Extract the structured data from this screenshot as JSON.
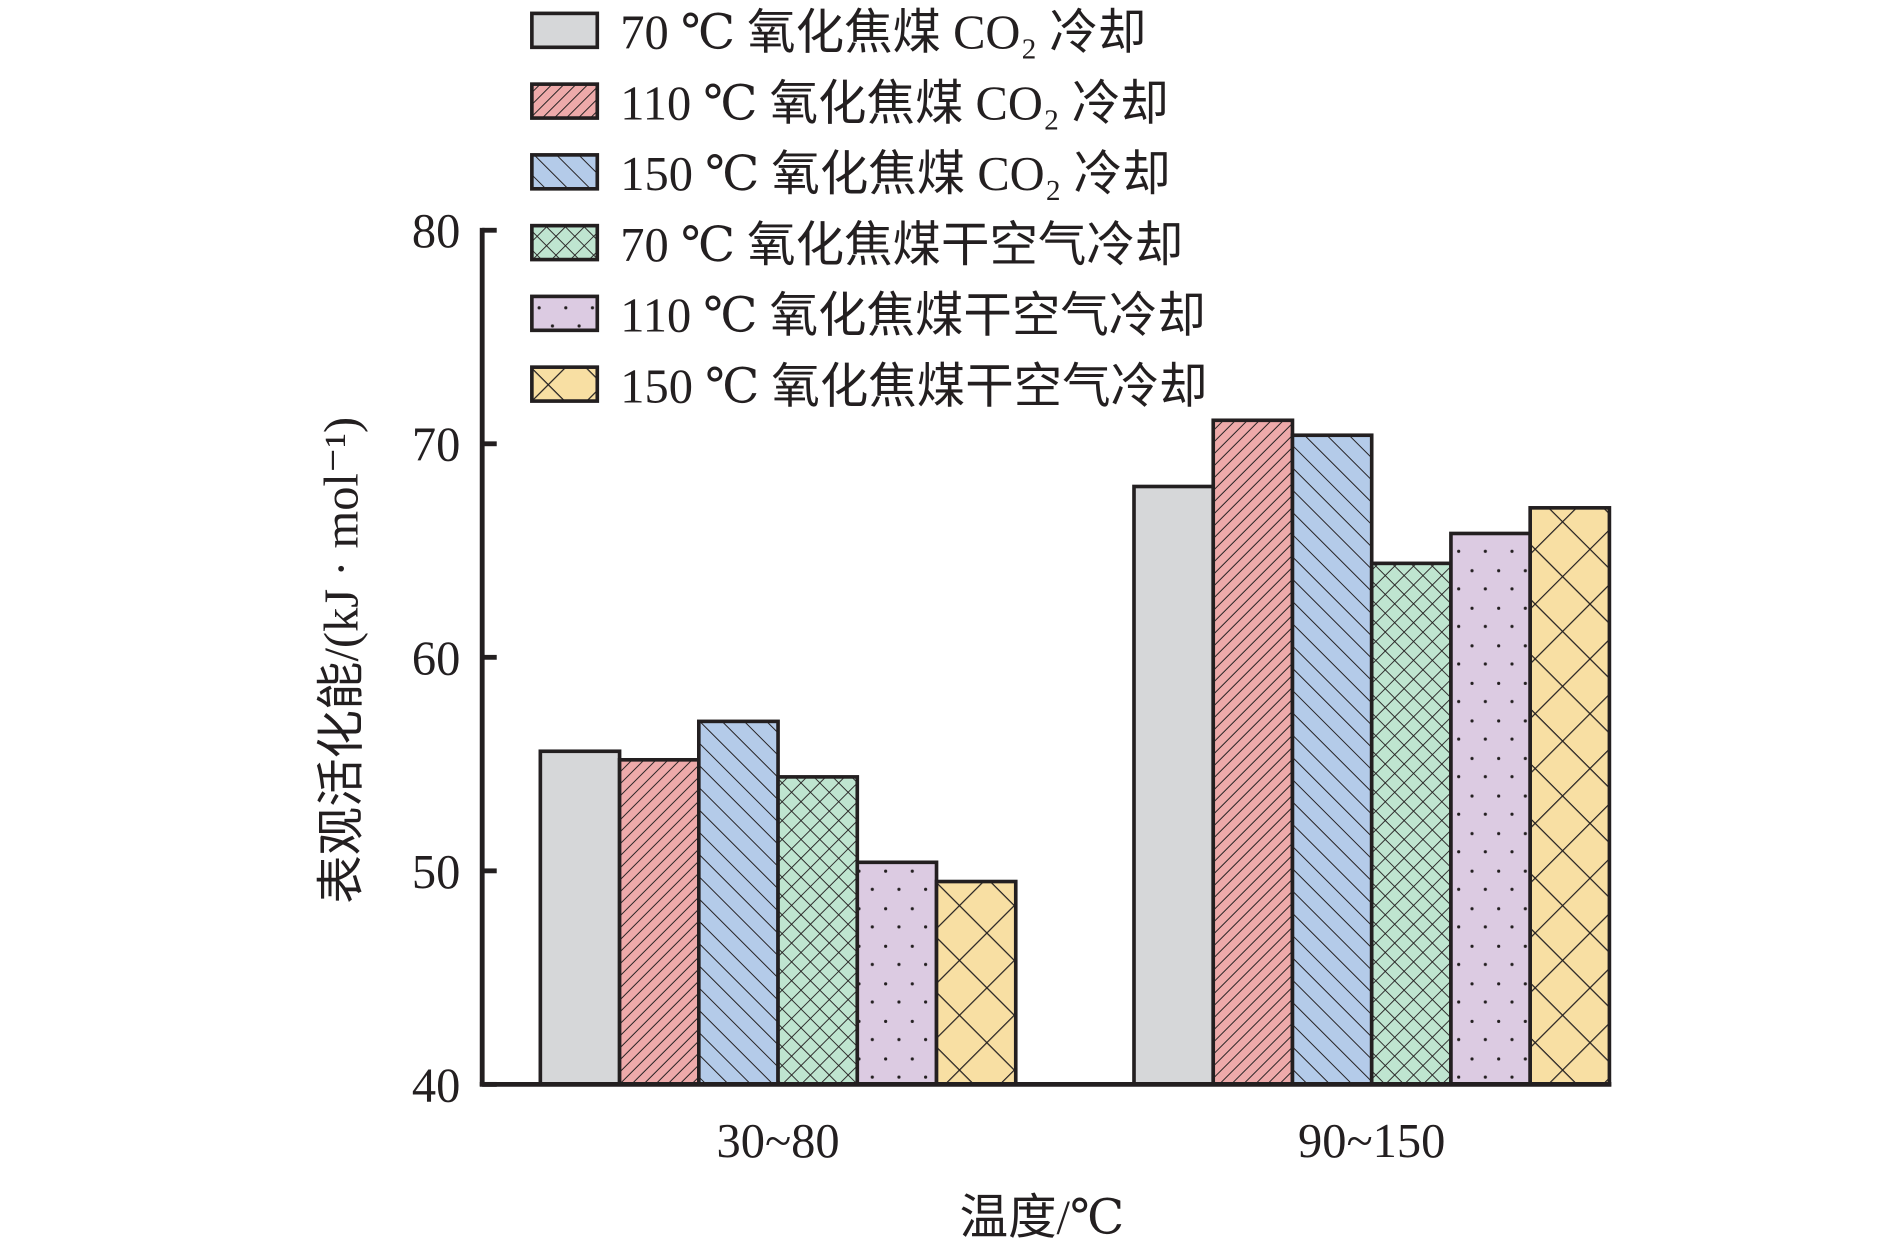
{
  "chart_data": {
    "type": "bar",
    "title": "",
    "xlabel": "温度/℃",
    "ylabel": "表观活化能/(kJ · mol⁻¹)",
    "ylim": [
      40,
      80
    ],
    "yticks": [
      "40",
      "50",
      "60",
      "70",
      "80"
    ],
    "categories": [
      "30~80",
      "90~150"
    ],
    "legend_position": "top",
    "grid": false,
    "series": [
      {
        "name": "70 ℃ 氧化焦煤 CO₂ 冷却",
        "values": [
          55.6,
          68.0
        ],
        "color": "#d6d7d9",
        "pattern": "none"
      },
      {
        "name": "110 ℃ 氧化焦煤 CO₂ 冷却",
        "values": [
          55.2,
          71.1
        ],
        "color": "#eeaaaa",
        "pattern": "dense-right-diagonal"
      },
      {
        "name": "150 ℃ 氧化焦煤 CO₂ 冷却",
        "values": [
          57.0,
          70.4
        ],
        "color": "#b4cbe9",
        "pattern": "left-diagonal"
      },
      {
        "name": "70 ℃ 氧化焦煤干空气冷却",
        "values": [
          54.4,
          64.4
        ],
        "color": "#bfe5d0",
        "pattern": "crosshatch"
      },
      {
        "name": "110 ℃ 氧化焦煤干空气冷却",
        "values": [
          50.4,
          65.8
        ],
        "color": "#dccbe2",
        "pattern": "dots"
      },
      {
        "name": "150 ℃ 氧化焦煤干空气冷却",
        "values": [
          49.5,
          67.0
        ],
        "color": "#f8dfa3",
        "pattern": "large-crosshatch"
      }
    ]
  }
}
